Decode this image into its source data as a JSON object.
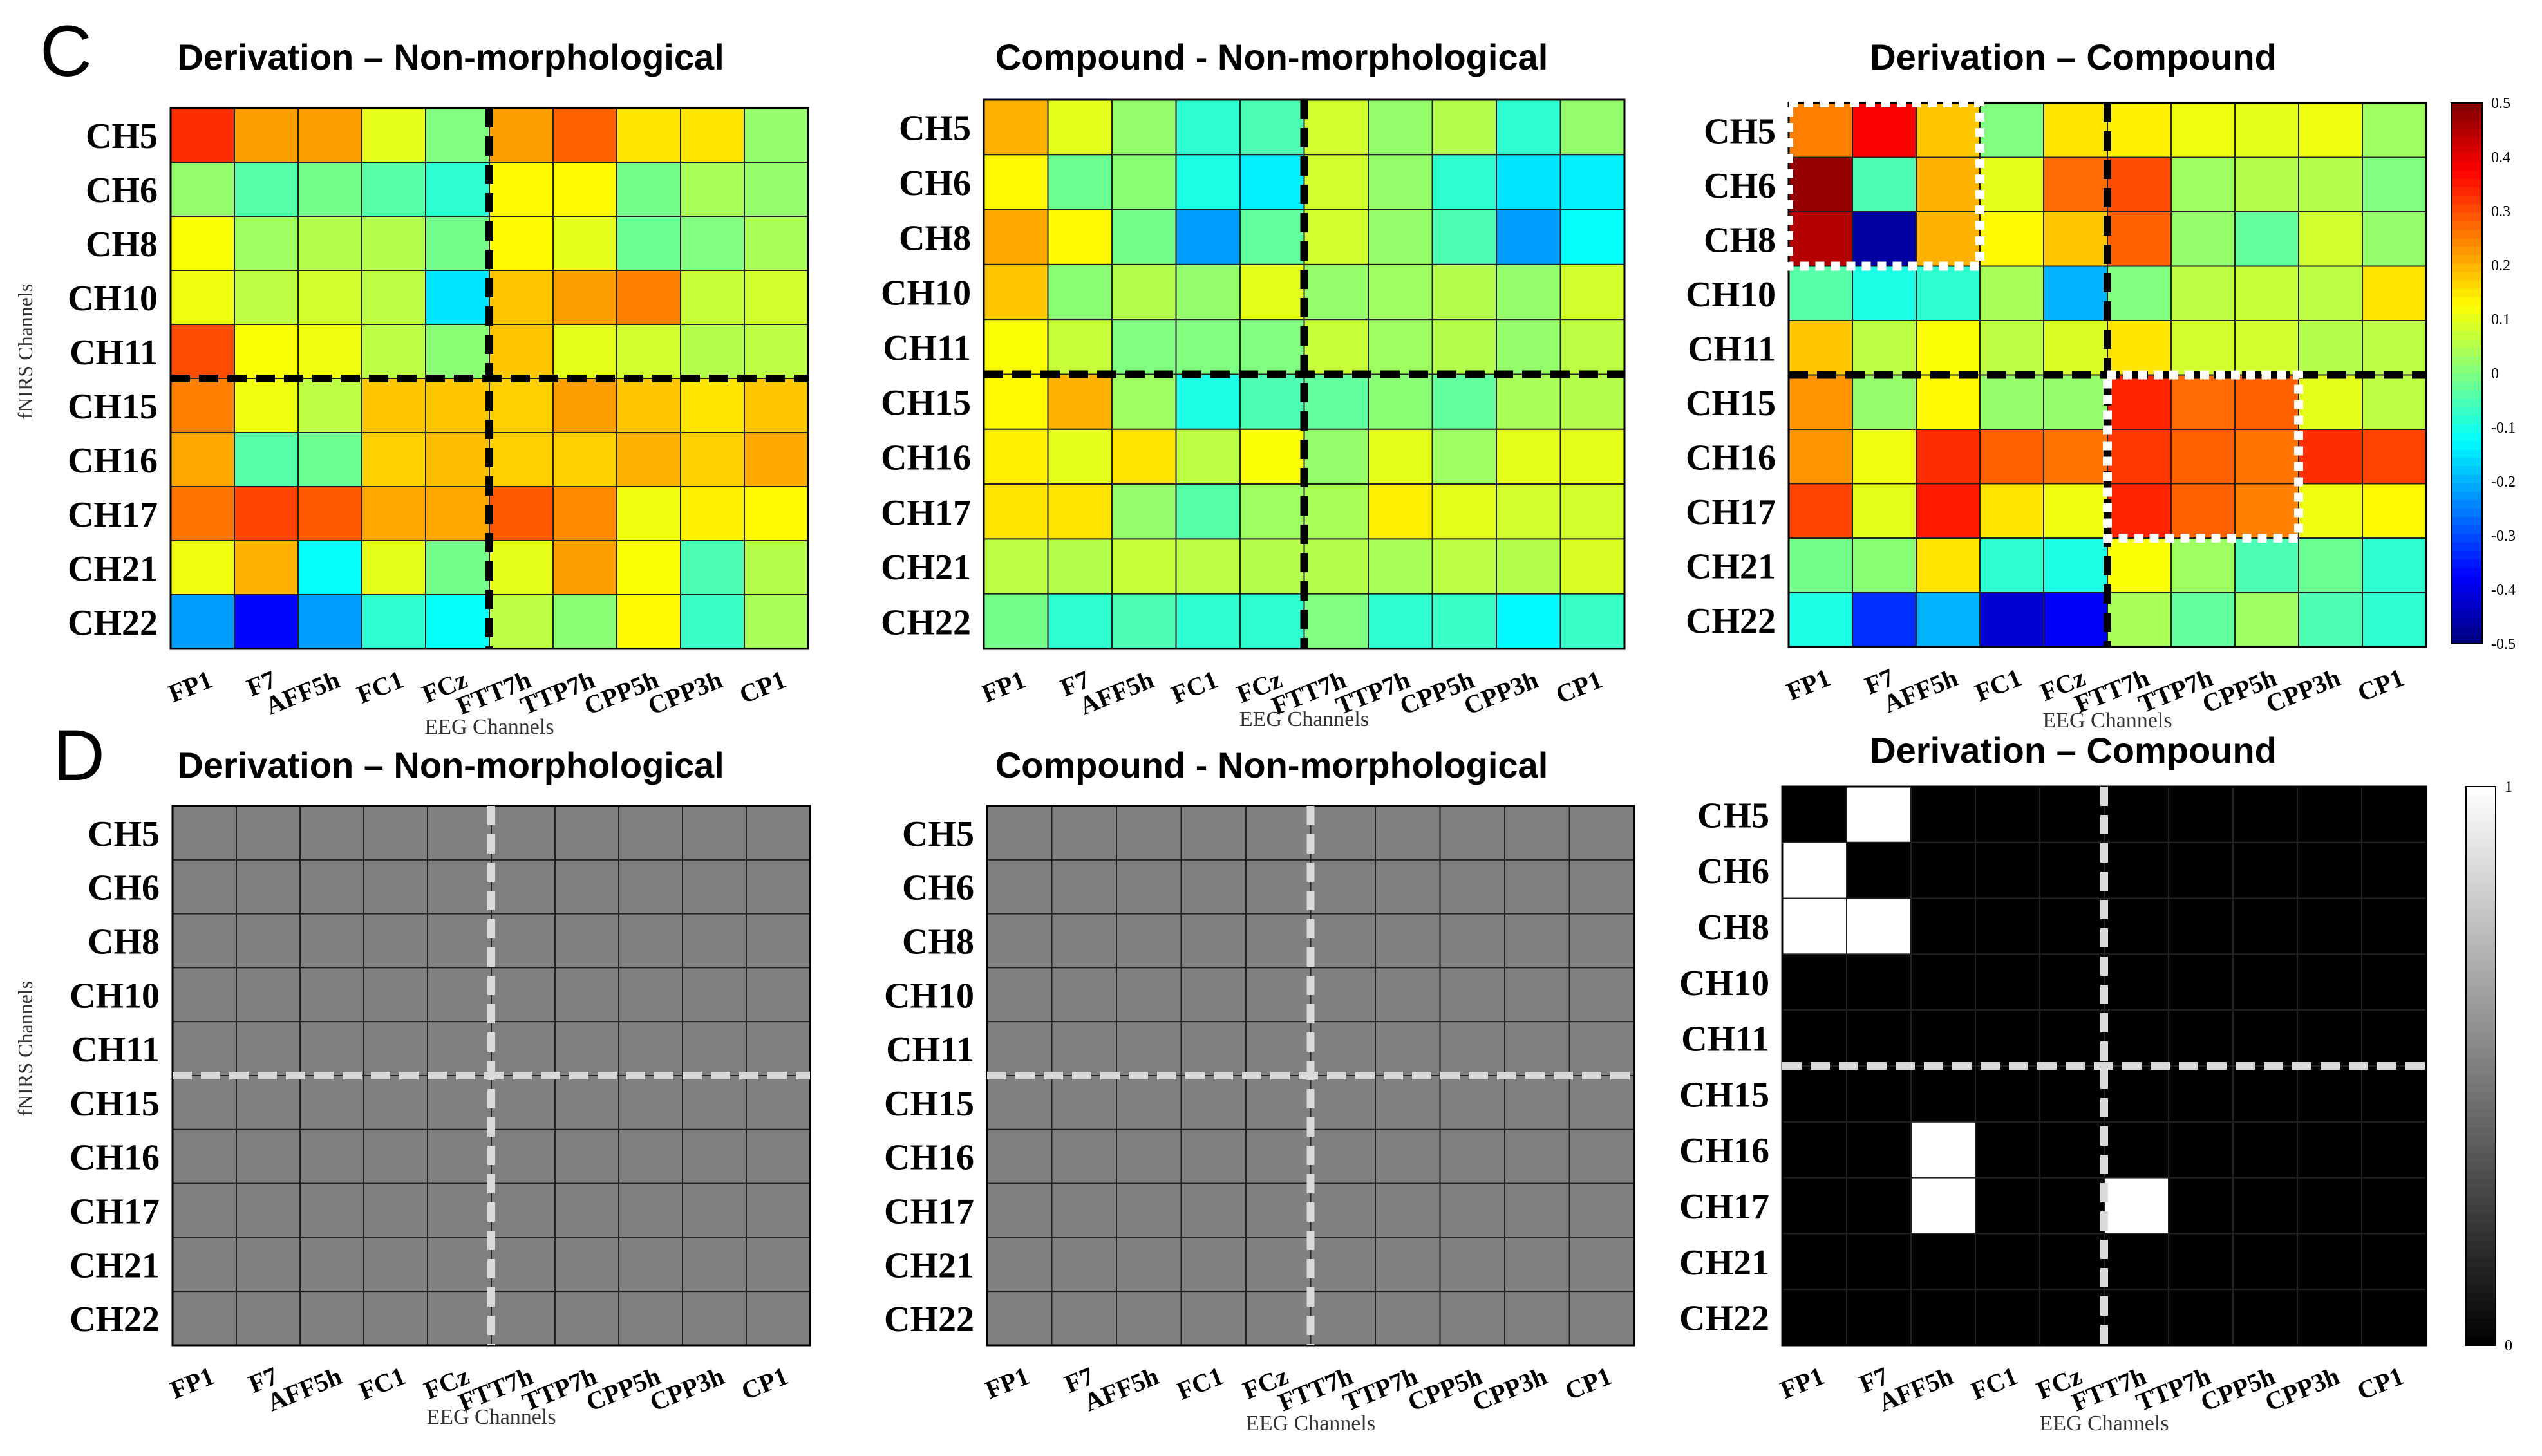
{
  "panel_labels": [
    "C",
    "D"
  ],
  "chart_data": [
    {
      "type": "heatmap",
      "panel": "C",
      "title": "Derivation – Non-morphological",
      "xlabel": "EEG Channels",
      "ylabel": "fNIRS Channels",
      "x_categories": [
        "FP1",
        "F7",
        "AFF5h",
        "FC1",
        "FCz",
        "FTT7h",
        "TTP7h",
        "CPP5h",
        "CPP3h",
        "CP1"
      ],
      "y_categories": [
        "CH5",
        "CH6",
        "CH8",
        "CH10",
        "CH11",
        "CH15",
        "CH16",
        "CH17",
        "CH21",
        "CH22"
      ],
      "values": [
        [
          0.33,
          0.22,
          0.22,
          0.1,
          0.0,
          0.22,
          0.28,
          0.15,
          0.15,
          0.02
        ],
        [
          0.02,
          -0.04,
          -0.01,
          -0.04,
          -0.08,
          0.13,
          0.13,
          -0.01,
          0.04,
          0.02
        ],
        [
          0.12,
          0.03,
          0.05,
          0.05,
          -0.01,
          0.13,
          0.1,
          -0.02,
          0.0,
          0.04
        ],
        [
          0.11,
          0.06,
          0.08,
          0.06,
          -0.15,
          0.18,
          0.22,
          0.25,
          0.07,
          0.08
        ],
        [
          0.3,
          0.12,
          0.11,
          0.06,
          0.01,
          0.18,
          0.1,
          0.08,
          0.05,
          0.06
        ],
        [
          0.25,
          0.11,
          0.06,
          0.18,
          0.18,
          0.17,
          0.22,
          0.18,
          0.15,
          0.18
        ],
        [
          0.21,
          -0.04,
          -0.02,
          0.17,
          0.19,
          0.17,
          0.17,
          0.2,
          0.17,
          0.21
        ],
        [
          0.26,
          0.31,
          0.29,
          0.21,
          0.21,
          0.29,
          0.24,
          0.11,
          0.14,
          0.13
        ],
        [
          0.11,
          0.2,
          -0.12,
          0.1,
          -0.01,
          0.1,
          0.22,
          0.12,
          -0.05,
          0.05
        ],
        [
          -0.22,
          -0.37,
          -0.22,
          -0.08,
          -0.12,
          0.06,
          0.01,
          0.13,
          -0.07,
          0.04
        ]
      ],
      "clim": [
        -0.5,
        0.5
      ],
      "colormap": "jet",
      "divider_after_col": 5,
      "divider_after_row": 5
    },
    {
      "type": "heatmap",
      "panel": "C",
      "title": "Compound - Non-morphological",
      "xlabel": "EEG Channels",
      "ylabel": "",
      "x_categories": [
        "FP1",
        "F7",
        "AFF5h",
        "FC1",
        "FCz",
        "FTT7h",
        "TTP7h",
        "CPP5h",
        "CPP3h",
        "CP1"
      ],
      "y_categories": [
        "CH5",
        "CH6",
        "CH8",
        "CH10",
        "CH11",
        "CH15",
        "CH16",
        "CH17",
        "CH21",
        "CH22"
      ],
      "values": [
        [
          0.2,
          0.1,
          0.02,
          -0.08,
          -0.05,
          0.08,
          0.02,
          0.05,
          -0.08,
          0.02
        ],
        [
          0.13,
          -0.02,
          0.01,
          -0.1,
          -0.14,
          0.08,
          0.02,
          -0.08,
          -0.15,
          -0.14
        ],
        [
          0.21,
          0.13,
          -0.01,
          -0.22,
          -0.03,
          0.08,
          0.02,
          -0.05,
          -0.22,
          -0.12
        ],
        [
          0.18,
          0.01,
          0.05,
          0.02,
          0.1,
          0.02,
          0.03,
          0.05,
          0.02,
          0.08
        ],
        [
          0.12,
          0.07,
          0.0,
          0.0,
          0.0,
          0.07,
          0.03,
          0.05,
          0.02,
          0.06
        ],
        [
          0.13,
          0.2,
          0.03,
          -0.1,
          -0.05,
          -0.03,
          0.01,
          -0.03,
          0.04,
          0.05
        ],
        [
          0.14,
          0.1,
          0.15,
          0.06,
          0.12,
          0.02,
          0.1,
          0.03,
          0.1,
          0.1
        ],
        [
          0.15,
          0.15,
          0.02,
          -0.04,
          0.03,
          0.04,
          0.14,
          0.1,
          0.08,
          0.08
        ],
        [
          0.06,
          0.05,
          0.07,
          0.06,
          0.05,
          0.05,
          0.04,
          0.06,
          0.05,
          0.09
        ],
        [
          -0.01,
          -0.08,
          -0.05,
          -0.08,
          -0.08,
          0.0,
          -0.08,
          -0.07,
          -0.13,
          -0.07
        ]
      ],
      "clim": [
        -0.5,
        0.5
      ],
      "colormap": "jet",
      "divider_after_col": 5,
      "divider_after_row": 5
    },
    {
      "type": "heatmap",
      "panel": "C",
      "title": "Derivation – Compound",
      "xlabel": "EEG Channels",
      "ylabel": "",
      "x_categories": [
        "FP1",
        "F7",
        "AFF5h",
        "FC1",
        "FCz",
        "FTT7h",
        "TTP7h",
        "CPP5h",
        "CPP3h",
        "CP1"
      ],
      "y_categories": [
        "CH5",
        "CH6",
        "CH8",
        "CH10",
        "CH11",
        "CH15",
        "CH16",
        "CH17",
        "CH21",
        "CH22"
      ],
      "values": [
        [
          0.25,
          0.38,
          0.18,
          0.0,
          0.15,
          0.14,
          0.11,
          0.1,
          0.11,
          0.03
        ],
        [
          0.48,
          -0.05,
          0.2,
          0.1,
          0.27,
          0.3,
          0.03,
          0.05,
          0.05,
          0.0
        ],
        [
          0.45,
          -0.47,
          0.2,
          0.13,
          0.18,
          0.28,
          0.02,
          -0.03,
          0.08,
          0.02
        ],
        [
          -0.04,
          -0.1,
          -0.08,
          0.04,
          -0.2,
          0.0,
          0.06,
          0.07,
          0.06,
          0.15
        ],
        [
          0.18,
          0.06,
          0.12,
          0.06,
          0.09,
          0.15,
          0.08,
          0.08,
          0.05,
          0.06
        ],
        [
          0.23,
          0.02,
          0.13,
          0.02,
          0.02,
          0.34,
          0.27,
          0.28,
          0.1,
          0.06
        ],
        [
          0.23,
          0.11,
          0.33,
          0.28,
          0.26,
          0.32,
          0.28,
          0.26,
          0.33,
          0.31
        ],
        [
          0.31,
          0.1,
          0.35,
          0.15,
          0.11,
          0.34,
          0.28,
          0.25,
          0.11,
          0.13
        ],
        [
          -0.01,
          0.01,
          0.15,
          -0.08,
          -0.1,
          0.12,
          0.03,
          -0.05,
          -0.02,
          -0.08
        ],
        [
          -0.1,
          -0.33,
          -0.2,
          -0.42,
          -0.38,
          0.04,
          -0.03,
          0.03,
          -0.05,
          -0.08
        ]
      ],
      "clim": [
        -0.5,
        0.5
      ],
      "colormap": "jet",
      "colorbar_ticks": [
        "0.5",
        "0.4",
        "0.3",
        "0.2",
        "0.1",
        "0",
        "-0.1",
        "-0.2",
        "-0.3",
        "-0.4",
        "-0.5"
      ],
      "divider_after_col": 5,
      "divider_after_row": 5
    },
    {
      "type": "heatmap",
      "panel": "D",
      "title": "Derivation – Non-morphological",
      "xlabel": "EEG Channels",
      "ylabel": "fNIRS Channels",
      "x_categories": [
        "FP1",
        "F7",
        "AFF5h",
        "FC1",
        "FCz",
        "FTT7h",
        "TTP7h",
        "CPP5h",
        "CPP3h",
        "CP1"
      ],
      "y_categories": [
        "CH5",
        "CH6",
        "CH8",
        "CH10",
        "CH11",
        "CH15",
        "CH16",
        "CH17",
        "CH21",
        "CH22"
      ],
      "values": [
        [
          0.5,
          0.5,
          0.5,
          0.5,
          0.5,
          0.5,
          0.5,
          0.5,
          0.5,
          0.5
        ],
        [
          0.5,
          0.5,
          0.5,
          0.5,
          0.5,
          0.5,
          0.5,
          0.5,
          0.5,
          0.5
        ],
        [
          0.5,
          0.5,
          0.5,
          0.5,
          0.5,
          0.5,
          0.5,
          0.5,
          0.5,
          0.5
        ],
        [
          0.5,
          0.5,
          0.5,
          0.5,
          0.5,
          0.5,
          0.5,
          0.5,
          0.5,
          0.5
        ],
        [
          0.5,
          0.5,
          0.5,
          0.5,
          0.5,
          0.5,
          0.5,
          0.5,
          0.5,
          0.5
        ],
        [
          0.5,
          0.5,
          0.5,
          0.5,
          0.5,
          0.5,
          0.5,
          0.5,
          0.5,
          0.5
        ],
        [
          0.5,
          0.5,
          0.5,
          0.5,
          0.5,
          0.5,
          0.5,
          0.5,
          0.5,
          0.5
        ],
        [
          0.5,
          0.5,
          0.5,
          0.5,
          0.5,
          0.5,
          0.5,
          0.5,
          0.5,
          0.5
        ],
        [
          0.5,
          0.5,
          0.5,
          0.5,
          0.5,
          0.5,
          0.5,
          0.5,
          0.5,
          0.5
        ],
        [
          0.5,
          0.5,
          0.5,
          0.5,
          0.5,
          0.5,
          0.5,
          0.5,
          0.5,
          0.5
        ]
      ],
      "clim": [
        0,
        1
      ],
      "colormap": "gray",
      "divider_after_col": 5,
      "divider_after_row": 5
    },
    {
      "type": "heatmap",
      "panel": "D",
      "title": "Compound - Non-morphological",
      "xlabel": "EEG Channels",
      "ylabel": "",
      "x_categories": [
        "FP1",
        "F7",
        "AFF5h",
        "FC1",
        "FCz",
        "FTT7h",
        "TTP7h",
        "CPP5h",
        "CPP3h",
        "CP1"
      ],
      "y_categories": [
        "CH5",
        "CH6",
        "CH8",
        "CH10",
        "CH11",
        "CH15",
        "CH16",
        "CH17",
        "CH21",
        "CH22"
      ],
      "values": [
        [
          0.5,
          0.5,
          0.5,
          0.5,
          0.5,
          0.5,
          0.5,
          0.5,
          0.5,
          0.5
        ],
        [
          0.5,
          0.5,
          0.5,
          0.5,
          0.5,
          0.5,
          0.5,
          0.5,
          0.5,
          0.5
        ],
        [
          0.5,
          0.5,
          0.5,
          0.5,
          0.5,
          0.5,
          0.5,
          0.5,
          0.5,
          0.5
        ],
        [
          0.5,
          0.5,
          0.5,
          0.5,
          0.5,
          0.5,
          0.5,
          0.5,
          0.5,
          0.5
        ],
        [
          0.5,
          0.5,
          0.5,
          0.5,
          0.5,
          0.5,
          0.5,
          0.5,
          0.5,
          0.5
        ],
        [
          0.5,
          0.5,
          0.5,
          0.5,
          0.5,
          0.5,
          0.5,
          0.5,
          0.5,
          0.5
        ],
        [
          0.5,
          0.5,
          0.5,
          0.5,
          0.5,
          0.5,
          0.5,
          0.5,
          0.5,
          0.5
        ],
        [
          0.5,
          0.5,
          0.5,
          0.5,
          0.5,
          0.5,
          0.5,
          0.5,
          0.5,
          0.5
        ],
        [
          0.5,
          0.5,
          0.5,
          0.5,
          0.5,
          0.5,
          0.5,
          0.5,
          0.5,
          0.5
        ],
        [
          0.5,
          0.5,
          0.5,
          0.5,
          0.5,
          0.5,
          0.5,
          0.5,
          0.5,
          0.5
        ]
      ],
      "clim": [
        0,
        1
      ],
      "colormap": "gray",
      "divider_after_col": 5,
      "divider_after_row": 5
    },
    {
      "type": "heatmap",
      "panel": "D",
      "title": "Derivation – Compound",
      "xlabel": "EEG Channels",
      "ylabel": "",
      "x_categories": [
        "FP1",
        "F7",
        "AFF5h",
        "FC1",
        "FCz",
        "FTT7h",
        "TTP7h",
        "CPP5h",
        "CPP3h",
        "CP1"
      ],
      "y_categories": [
        "CH5",
        "CH6",
        "CH8",
        "CH10",
        "CH11",
        "CH15",
        "CH16",
        "CH17",
        "CH21",
        "CH22"
      ],
      "values": [
        [
          0,
          1,
          0,
          0,
          0,
          0,
          0,
          0,
          0,
          0
        ],
        [
          1,
          0,
          0,
          0,
          0,
          0,
          0,
          0,
          0,
          0
        ],
        [
          1,
          1,
          0,
          0,
          0,
          0,
          0,
          0,
          0,
          0
        ],
        [
          0,
          0,
          0,
          0,
          0,
          0,
          0,
          0,
          0,
          0
        ],
        [
          0,
          0,
          0,
          0,
          0,
          0,
          0,
          0,
          0,
          0
        ],
        [
          0,
          0,
          0,
          0,
          0,
          0,
          0,
          0,
          0,
          0
        ],
        [
          0,
          0,
          1,
          0,
          0,
          0,
          0,
          0,
          0,
          0
        ],
        [
          0,
          0,
          1,
          0,
          0,
          1,
          0,
          0,
          0,
          0
        ],
        [
          0,
          0,
          0,
          0,
          0,
          0,
          0,
          0,
          0,
          0
        ],
        [
          0,
          0,
          0,
          0,
          0,
          0,
          0,
          0,
          0,
          0
        ]
      ],
      "clim": [
        0,
        1
      ],
      "colormap": "gray",
      "colorbar_ticks": [
        "1",
        "0"
      ],
      "divider_after_col": 5,
      "divider_after_row": 5
    }
  ]
}
